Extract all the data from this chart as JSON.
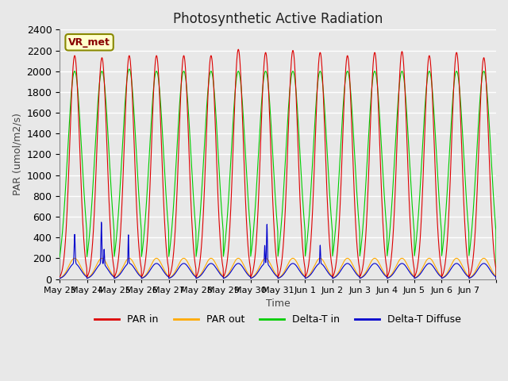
{
  "title": "Photosynthetic Active Radiation",
  "ylabel": "PAR (umol/m2/s)",
  "xlabel": "Time",
  "ylim": [
    0,
    2400
  ],
  "yticks": [
    0,
    200,
    400,
    600,
    800,
    1000,
    1200,
    1400,
    1600,
    1800,
    2000,
    2200,
    2400
  ],
  "legend_labels": [
    "PAR in",
    "PAR out",
    "Delta-T in",
    "Delta-T Diffuse"
  ],
  "legend_colors": [
    "#dd0000",
    "#ffaa00",
    "#00cc00",
    "#0000cc"
  ],
  "line_colors": {
    "par_in": "#dd0000",
    "par_out": "#ffaa00",
    "delta_t_in": "#00cc00",
    "delta_t_diffuse": "#0000cc"
  },
  "watermark_text": "VR_met",
  "background_color": "#e8e8e8",
  "plot_bg_color": "#e8e8e8",
  "grid_color": "#ffffff",
  "num_days": 16,
  "x_tick_positions": [
    0,
    1,
    2,
    3,
    4,
    5,
    6,
    7,
    8,
    9,
    10,
    11,
    12,
    13,
    14,
    15,
    16
  ],
  "x_tick_labels": [
    "May 23",
    "May 24",
    "May 25",
    "May 26",
    "May 27",
    "May 28",
    "May 29",
    "May 30",
    "May 31",
    "Jun 1",
    "Jun 2",
    "Jun 3",
    "Jun 4",
    "Jun 5",
    "Jun 6",
    "Jun 7",
    ""
  ],
  "day_peaks_par_in": [
    2150,
    2130,
    2150,
    2150,
    2150,
    2150,
    2210,
    2180,
    2200,
    2180,
    2150,
    2180,
    2190,
    2150,
    2180,
    2130
  ],
  "day_peaks_delta_t": [
    2000,
    2000,
    2020,
    2000,
    2000,
    2000,
    2000,
    2000,
    2000,
    2000,
    2000,
    2000,
    2000,
    2000,
    2000,
    2000
  ],
  "figsize": [
    6.4,
    4.8
  ],
  "dpi": 100
}
